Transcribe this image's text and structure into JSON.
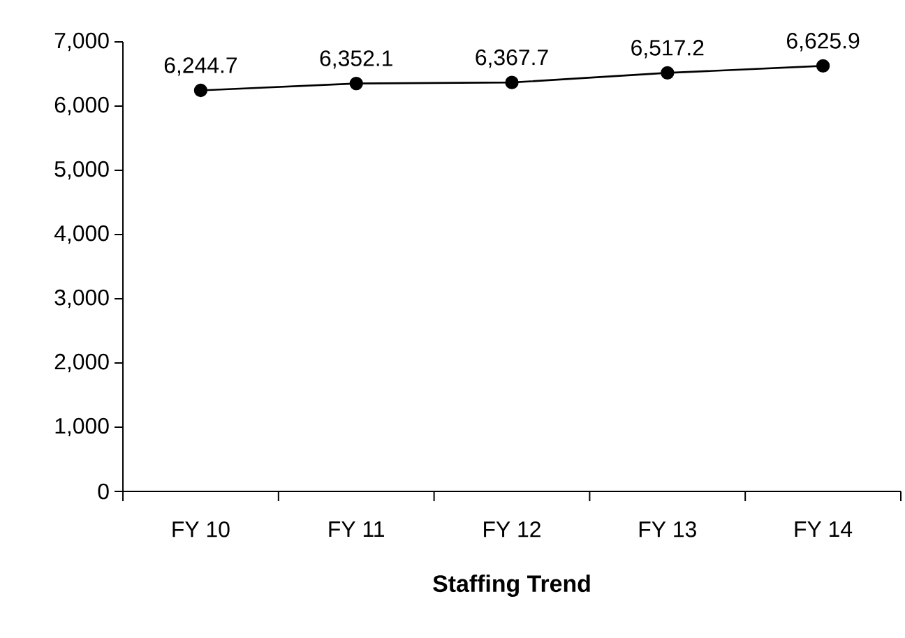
{
  "chart_data": {
    "type": "line",
    "xlabel": "**Staffing Trend**",
    "categories": [
      "FY 10",
      "FY 11",
      "FY 12",
      "FY 13",
      "FY 14"
    ],
    "series": [
      {
        "color": "#000000",
        "values": [
          6244.7,
          6352.1,
          6367.7,
          6517.2,
          6625.9
        ],
        "value_labels": [
          "6,244.7",
          "6,352.1",
          "6,367.7",
          "6,517.2",
          "6,625.9"
        ]
      }
    ],
    "ylim": [
      0,
      7000
    ],
    "yticks": [
      0,
      {
        "value": 1000,
        "label": "1,000"
      },
      {
        "value": 2000,
        "label": "2,000"
      },
      {
        "value": 3000,
        "label": "3,000"
      },
      {
        "value": 4000,
        "label": "4,000"
      },
      {
        "value": 5000,
        "label": "5,000"
      },
      {
        "value": 6000,
        "label": "6,000"
      },
      {
        "value": 7000,
        "label": "7,000"
      }
    ],
    "marker": "circle",
    "line_style": "solid",
    "grid": false
  }
}
